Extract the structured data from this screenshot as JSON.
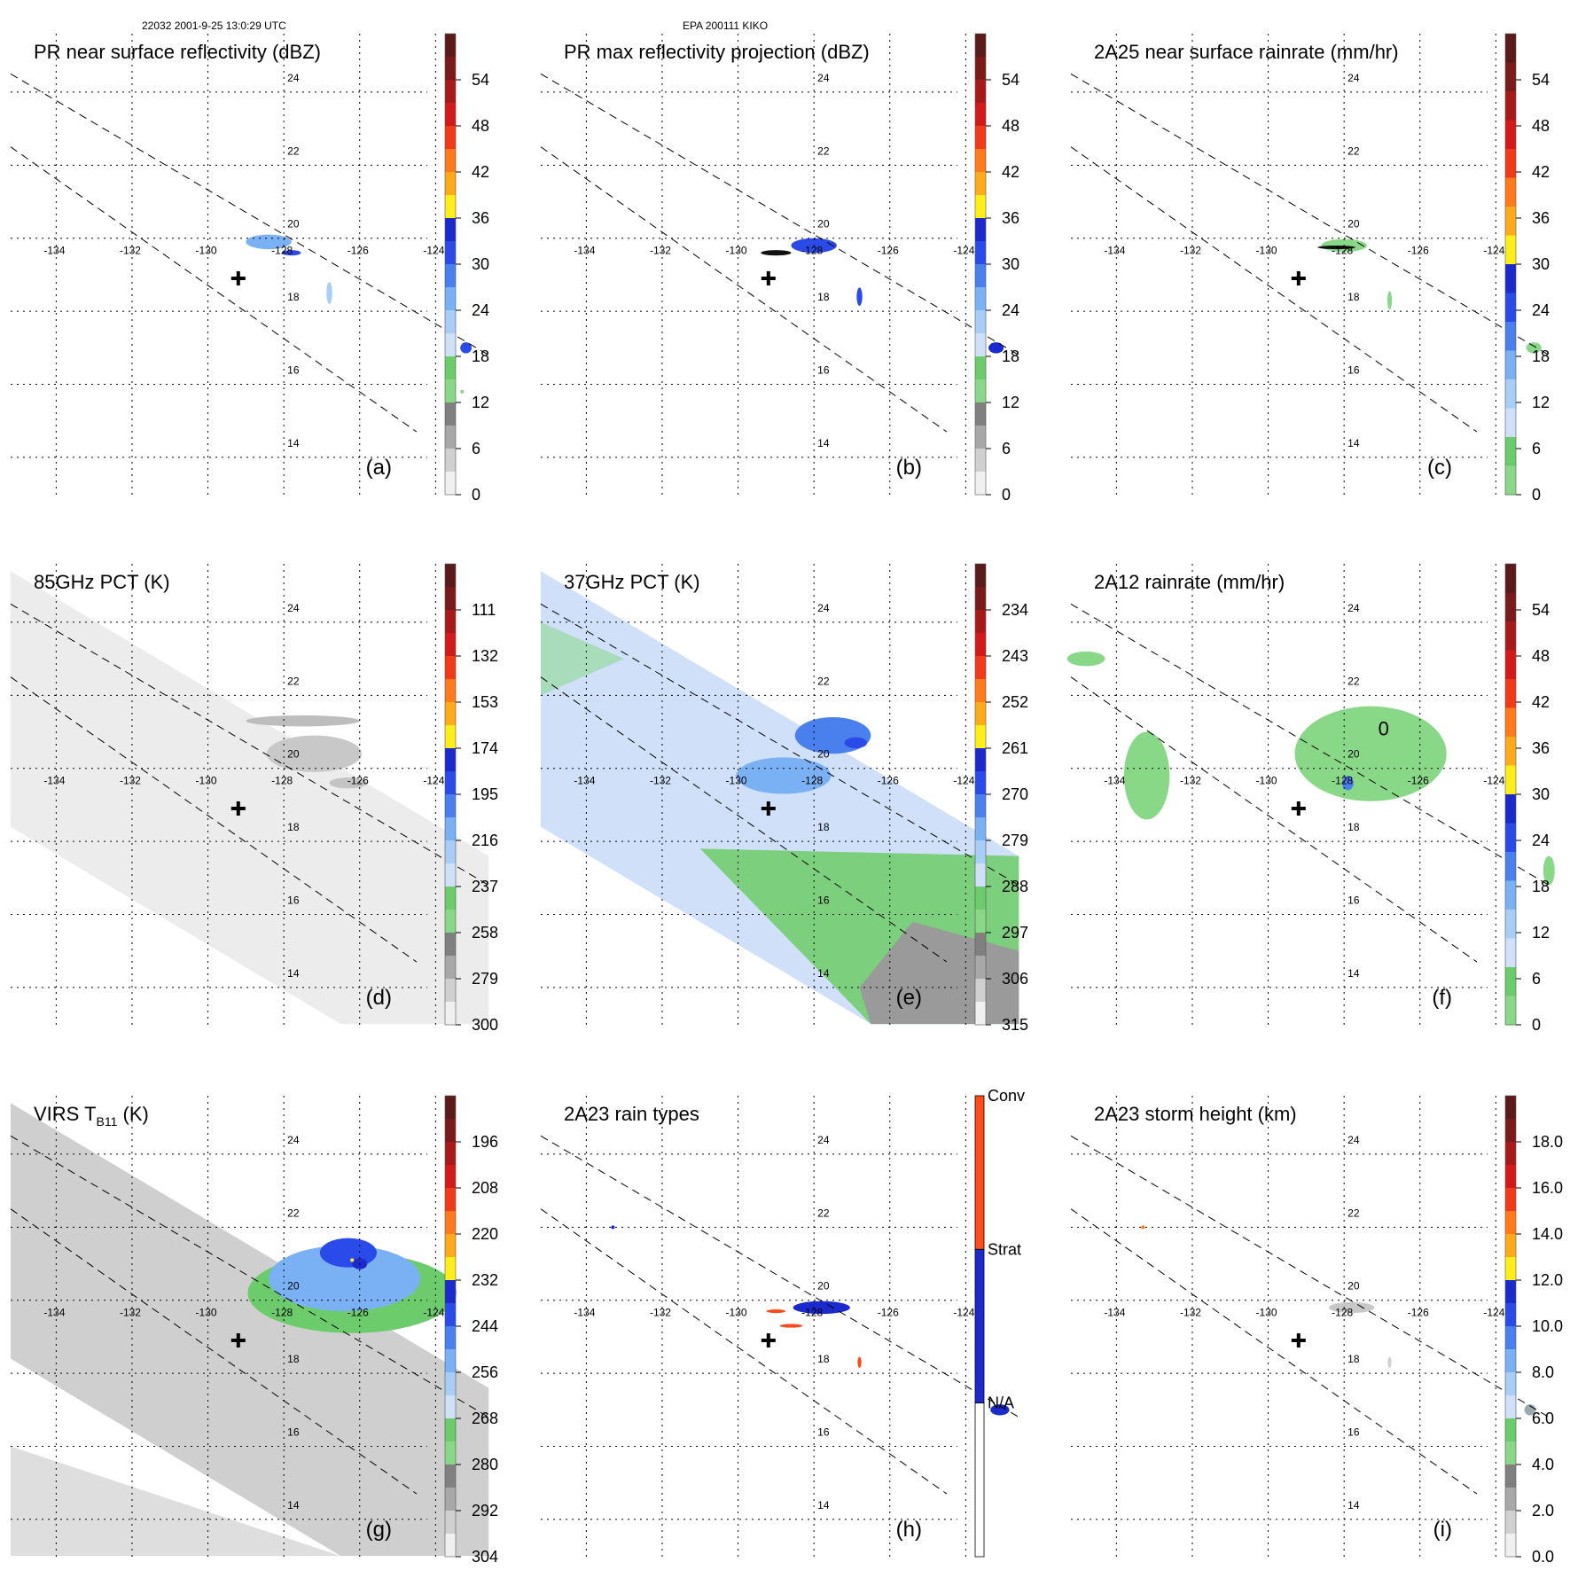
{
  "header": {
    "orbit_time": "22032 2001-9-25 13:0:29 UTC",
    "storm": "EPA 200111 KIKO"
  },
  "colors": {
    "gridline": "#000000",
    "swath_edge": "#000000",
    "center_marker": "#000000"
  },
  "chart_data": [
    {
      "id": "a",
      "type": "heatmap",
      "title": "PR near surface reflectivity (dBZ)",
      "panel_label": "(a)",
      "background": "none",
      "lon_ticks": [
        "-134",
        "-132",
        "-130",
        "-128",
        "-126",
        "-124"
      ],
      "lat_ticks": [
        "24",
        "22",
        "20",
        "18",
        "16",
        "14"
      ],
      "colorbar": {
        "labels": [
          "54",
          "48",
          "42",
          "36",
          "30",
          "24",
          "18",
          "12",
          "6",
          "0"
        ],
        "colors": [
          "#5a1a1a",
          "#7a1a1a",
          "#a81a1a",
          "#d21a1a",
          "#f03a1a",
          "#ff7a1a",
          "#ffaa1a",
          "#ffee1a",
          "#1a2acd",
          "#2a4aea",
          "#4a80ee",
          "#7ab0f4",
          "#a8cdf6",
          "#cfe0f8",
          "#6ccc6c",
          "#88d888",
          "#808080",
          "#a8a8a8",
          "#d0d0d0",
          "#f0f0f0"
        ]
      },
      "features": [
        {
          "kind": "patch",
          "color": "#7ab0f4",
          "lon": -128.4,
          "lat": 19.9,
          "w": 1.2,
          "h": 0.4
        },
        {
          "kind": "patch",
          "color": "#2a4aea",
          "lon": -127.8,
          "lat": 19.6,
          "w": 0.5,
          "h": 0.15
        },
        {
          "kind": "patch",
          "color": "#a8cdf6",
          "lon": -126.8,
          "lat": 18.5,
          "w": 0.15,
          "h": 0.6
        },
        {
          "kind": "patch",
          "color": "#2a4aea",
          "lon": -123.2,
          "lat": 17.0,
          "w": 0.3,
          "h": 0.3
        },
        {
          "kind": "patch",
          "color": "#88d888",
          "lon": -123.3,
          "lat": 15.8,
          "w": 0.1,
          "h": 0.1
        }
      ]
    },
    {
      "id": "b",
      "type": "heatmap",
      "title": "PR max reflectivity projection (dBZ)",
      "panel_label": "(b)",
      "background": "none",
      "lon_ticks": [
        "-134",
        "-132",
        "-130",
        "-128",
        "-126",
        "-124"
      ],
      "lat_ticks": [
        "24",
        "22",
        "20",
        "18",
        "16",
        "14"
      ],
      "colorbar": {
        "labels": [
          "54",
          "48",
          "42",
          "36",
          "30",
          "24",
          "18",
          "12",
          "6",
          "0"
        ],
        "colors": [
          "#5a1a1a",
          "#7a1a1a",
          "#a81a1a",
          "#d21a1a",
          "#f03a1a",
          "#ff7a1a",
          "#ffaa1a",
          "#ffee1a",
          "#1a2acd",
          "#2a4aea",
          "#4a80ee",
          "#7ab0f4",
          "#a8cdf6",
          "#cfe0f8",
          "#6ccc6c",
          "#88d888",
          "#808080",
          "#a8a8a8",
          "#d0d0d0",
          "#f0f0f0"
        ]
      },
      "features": [
        {
          "kind": "patch",
          "color": "#2a4aea",
          "lon": -128.0,
          "lat": 19.8,
          "w": 1.2,
          "h": 0.4
        },
        {
          "kind": "patch",
          "color": "#111111",
          "lon": -129.0,
          "lat": 19.6,
          "w": 0.8,
          "h": 0.15
        },
        {
          "kind": "patch",
          "color": "#2a4aea",
          "lon": -126.8,
          "lat": 18.4,
          "w": 0.15,
          "h": 0.5
        },
        {
          "kind": "patch",
          "color": "#1a2acd",
          "lon": -123.2,
          "lat": 17.0,
          "w": 0.4,
          "h": 0.3
        }
      ]
    },
    {
      "id": "c",
      "type": "heatmap",
      "title": "2A25 near surface rainrate (mm/hr)",
      "panel_label": "(c)",
      "background": "none",
      "lon_ticks": [
        "-134",
        "-132",
        "-130",
        "-128",
        "-126",
        "-124"
      ],
      "lat_ticks": [
        "24",
        "22",
        "20",
        "18",
        "16",
        "14"
      ],
      "colorbar": {
        "labels": [
          "54",
          "48",
          "42",
          "36",
          "30",
          "24",
          "18",
          "12",
          "6",
          "0"
        ],
        "colors": [
          "#5a1a1a",
          "#7a1a1a",
          "#a81a1a",
          "#d21a1a",
          "#f03a1a",
          "#ff7a1a",
          "#ffaa1a",
          "#ffee1a",
          "#1a2acd",
          "#2a4aea",
          "#4a80ee",
          "#7ab0f4",
          "#a8cdf6",
          "#cfe0f8",
          "#6ccc6c",
          "#88d888"
        ]
      },
      "features": [
        {
          "kind": "patch",
          "color": "#88d888",
          "lon": -128.0,
          "lat": 19.8,
          "w": 1.2,
          "h": 0.35
        },
        {
          "kind": "patch",
          "color": "#111111",
          "lon": -128.2,
          "lat": 19.75,
          "w": 1.0,
          "h": 0.1
        },
        {
          "kind": "patch",
          "color": "#88d888",
          "lon": -126.8,
          "lat": 18.3,
          "w": 0.12,
          "h": 0.5
        },
        {
          "kind": "patch",
          "color": "#88d888",
          "lon": -123.0,
          "lat": 17.0,
          "w": 0.4,
          "h": 0.3
        }
      ]
    },
    {
      "id": "d",
      "type": "heatmap",
      "title": "85GHz PCT (K)",
      "panel_label": "(d)",
      "background": "swath_gray_light",
      "lon_ticks": [
        "-134",
        "-132",
        "-130",
        "-128",
        "-126",
        "-124"
      ],
      "lat_ticks": [
        "24",
        "22",
        "20",
        "18",
        "16",
        "14"
      ],
      "colorbar": {
        "labels": [
          "111",
          "132",
          "153",
          "174",
          "195",
          "216",
          "237",
          "258",
          "279",
          "300"
        ],
        "colors": [
          "#5a1a1a",
          "#7a1a1a",
          "#a81a1a",
          "#d21a1a",
          "#f03a1a",
          "#ff7a1a",
          "#ffaa1a",
          "#ffee1a",
          "#1a2acd",
          "#2a4aea",
          "#4a80ee",
          "#7ab0f4",
          "#a8cdf6",
          "#cfe0f8",
          "#6ccc6c",
          "#88d888",
          "#808080",
          "#a8a8a8",
          "#d0d0d0",
          "#f0f0f0"
        ]
      },
      "features": [
        {
          "kind": "patch",
          "color": "#bdbdbd",
          "lon": -127.5,
          "lat": 21.3,
          "w": 3.0,
          "h": 0.3
        },
        {
          "kind": "patch",
          "color": "#c8c8c8",
          "lon": -127.2,
          "lat": 20.4,
          "w": 2.5,
          "h": 1.0
        },
        {
          "kind": "patch",
          "color": "#c4c4c4",
          "lon": -126.3,
          "lat": 19.6,
          "w": 1.0,
          "h": 0.3
        }
      ]
    },
    {
      "id": "e",
      "type": "heatmap",
      "title": "37GHz PCT (K)",
      "panel_label": "(e)",
      "background": "swath_37ghz",
      "lon_ticks": [
        "-134",
        "-132",
        "-130",
        "-128",
        "-126",
        "-124"
      ],
      "lat_ticks": [
        "24",
        "22",
        "20",
        "18",
        "16",
        "14"
      ],
      "colorbar": {
        "labels": [
          "234",
          "243",
          "252",
          "261",
          "270",
          "279",
          "288",
          "297",
          "306",
          "315"
        ],
        "colors": [
          "#5a1a1a",
          "#7a1a1a",
          "#a81a1a",
          "#d21a1a",
          "#f03a1a",
          "#ff7a1a",
          "#ffaa1a",
          "#ffee1a",
          "#1a2acd",
          "#2a4aea",
          "#4a80ee",
          "#7ab0f4",
          "#a8cdf6",
          "#cfe0f8",
          "#6ccc6c",
          "#88d888",
          "#808080",
          "#a8a8a8",
          "#d0d0d0",
          "#f0f0f0"
        ]
      },
      "features": [
        {
          "kind": "patch",
          "color": "#4a80ee",
          "lon": -127.5,
          "lat": 20.9,
          "w": 2.0,
          "h": 1.0
        },
        {
          "kind": "patch",
          "color": "#2a4aea",
          "lon": -126.9,
          "lat": 20.7,
          "w": 0.6,
          "h": 0.3
        },
        {
          "kind": "patch",
          "color": "#7ab0f4",
          "lon": -128.8,
          "lat": 19.8,
          "w": 2.5,
          "h": 1.0
        }
      ]
    },
    {
      "id": "f",
      "type": "heatmap",
      "title": "2A12 rainrate (mm/hr)",
      "panel_label": "(f)",
      "background": "none",
      "lon_ticks": [
        "-134",
        "-132",
        "-130",
        "-128",
        "-126",
        "-124"
      ],
      "lat_ticks": [
        "24",
        "22",
        "20",
        "18",
        "16",
        "14"
      ],
      "contour_label": "0",
      "colorbar": {
        "labels": [
          "54",
          "48",
          "42",
          "36",
          "30",
          "24",
          "18",
          "12",
          "6",
          "0"
        ],
        "colors": [
          "#5a1a1a",
          "#7a1a1a",
          "#a81a1a",
          "#d21a1a",
          "#f03a1a",
          "#ff7a1a",
          "#ffaa1a",
          "#ffee1a",
          "#1a2acd",
          "#2a4aea",
          "#4a80ee",
          "#7ab0f4",
          "#a8cdf6",
          "#cfe0f8",
          "#6ccc6c",
          "#88d888"
        ]
      },
      "features": [
        {
          "kind": "patch",
          "color": "#88d888",
          "lon": -127.3,
          "lat": 20.4,
          "w": 4.0,
          "h": 2.6
        },
        {
          "kind": "patch",
          "color": "#88d888",
          "lon": -133.2,
          "lat": 19.8,
          "w": 1.2,
          "h": 2.4
        },
        {
          "kind": "patch",
          "color": "#4a80ee",
          "lon": -127.9,
          "lat": 19.6,
          "w": 0.3,
          "h": 0.4
        },
        {
          "kind": "patch",
          "color": "#88d888",
          "lon": -122.6,
          "lat": 17.2,
          "w": 0.3,
          "h": 0.8
        },
        {
          "kind": "patch",
          "color": "#88d888",
          "lon": -134.8,
          "lat": 23.0,
          "w": 1.0,
          "h": 0.4
        }
      ]
    },
    {
      "id": "g",
      "type": "heatmap",
      "title": "VIRS T",
      "title_sub": "B11",
      "title_suffix": " (K)",
      "panel_label": "(g)",
      "background": "swath_gray_mid",
      "lon_ticks": [
        "-134",
        "-132",
        "-130",
        "-128",
        "-126",
        "-124"
      ],
      "lat_ticks": [
        "24",
        "22",
        "20",
        "18",
        "16",
        "14"
      ],
      "colorbar": {
        "labels": [
          "196",
          "208",
          "220",
          "232",
          "244",
          "256",
          "268",
          "280",
          "292",
          "304"
        ],
        "colors": [
          "#5a1a1a",
          "#7a1a1a",
          "#a81a1a",
          "#d21a1a",
          "#f03a1a",
          "#ff7a1a",
          "#ffaa1a",
          "#ffee1a",
          "#1a2acd",
          "#2a4aea",
          "#4a80ee",
          "#7ab0f4",
          "#a8cdf6",
          "#cfe0f8",
          "#6ccc6c",
          "#88d888",
          "#808080",
          "#a8a8a8",
          "#d0d0d0",
          "#f0f0f0"
        ]
      },
      "features": [
        {
          "kind": "patch",
          "color": "#6ccc6c",
          "lon": -126.2,
          "lat": 20.2,
          "w": 5.5,
          "h": 2.2
        },
        {
          "kind": "patch",
          "color": "#7ab0f4",
          "lon": -126.4,
          "lat": 20.6,
          "w": 4.0,
          "h": 1.8
        },
        {
          "kind": "patch",
          "color": "#2a4aea",
          "lon": -126.3,
          "lat": 21.3,
          "w": 1.5,
          "h": 0.8
        },
        {
          "kind": "patch",
          "color": "#1a2acd",
          "lon": -126.0,
          "lat": 21.0,
          "w": 0.4,
          "h": 0.3
        },
        {
          "kind": "patch",
          "color": "#ffee1a",
          "lon": -126.2,
          "lat": 21.1,
          "w": 0.1,
          "h": 0.1
        }
      ]
    },
    {
      "id": "h",
      "type": "heatmap",
      "title": "2A23 rain types",
      "panel_label": "(h)",
      "background": "none",
      "lon_ticks": [
        "-134",
        "-132",
        "-130",
        "-128",
        "-126",
        "-124"
      ],
      "lat_ticks": [
        "24",
        "22",
        "20",
        "18",
        "16",
        "14"
      ],
      "colorbar": {
        "labels": [
          "Conv",
          "Strat",
          "N/A"
        ],
        "colors": [
          "#ff4a1a",
          "#1a2acd",
          "#ffffff"
        ],
        "categorical": true
      },
      "features": [
        {
          "kind": "patch",
          "color": "#1a2acd",
          "lon": -127.8,
          "lat": 19.8,
          "w": 1.5,
          "h": 0.35
        },
        {
          "kind": "patch",
          "color": "#ff4a1a",
          "lon": -129.0,
          "lat": 19.7,
          "w": 0.5,
          "h": 0.1
        },
        {
          "kind": "patch",
          "color": "#ff4a1a",
          "lon": -128.6,
          "lat": 19.3,
          "w": 0.6,
          "h": 0.1
        },
        {
          "kind": "patch",
          "color": "#ff4a1a",
          "lon": -126.8,
          "lat": 18.3,
          "w": 0.1,
          "h": 0.3
        },
        {
          "kind": "patch",
          "color": "#1a2acd",
          "lon": -123.1,
          "lat": 17.0,
          "w": 0.5,
          "h": 0.3
        },
        {
          "kind": "patch",
          "color": "#1a2acd",
          "lon": -133.3,
          "lat": 22.0,
          "w": 0.06,
          "h": 0.06
        }
      ]
    },
    {
      "id": "i",
      "type": "heatmap",
      "title": "2A23 storm height (km)",
      "panel_label": "(i)",
      "background": "none",
      "lon_ticks": [
        "-134",
        "-132",
        "-130",
        "-128",
        "-126",
        "-124"
      ],
      "lat_ticks": [
        "24",
        "22",
        "20",
        "18",
        "16",
        "14"
      ],
      "colorbar": {
        "labels": [
          "18.0",
          "16.0",
          "14.0",
          "12.0",
          "10.0",
          "8.0",
          "6.0",
          "4.0",
          "2.0",
          "0.0"
        ],
        "colors": [
          "#5a1a1a",
          "#7a1a1a",
          "#a81a1a",
          "#d21a1a",
          "#f03a1a",
          "#ff7a1a",
          "#ffaa1a",
          "#ffee1a",
          "#1a2acd",
          "#2a4aea",
          "#4a80ee",
          "#7ab0f4",
          "#a8cdf6",
          "#cfe0f8",
          "#6ccc6c",
          "#88d888",
          "#808080",
          "#a8a8a8",
          "#d0d0d0",
          "#f0f0f0"
        ]
      },
      "features": [
        {
          "kind": "patch",
          "color": "#c8c8c8",
          "lon": -127.8,
          "lat": 19.8,
          "w": 1.2,
          "h": 0.3
        },
        {
          "kind": "patch",
          "color": "#d0d0d0",
          "lon": -126.8,
          "lat": 18.3,
          "w": 0.1,
          "h": 0.3
        },
        {
          "kind": "patch",
          "color": "#9aaab0",
          "lon": -123.1,
          "lat": 17.0,
          "w": 0.3,
          "h": 0.3
        },
        {
          "kind": "patch",
          "color": "#ff7a1a",
          "lon": -133.3,
          "lat": 22.0,
          "w": 0.05,
          "h": 0.05
        }
      ]
    }
  ]
}
